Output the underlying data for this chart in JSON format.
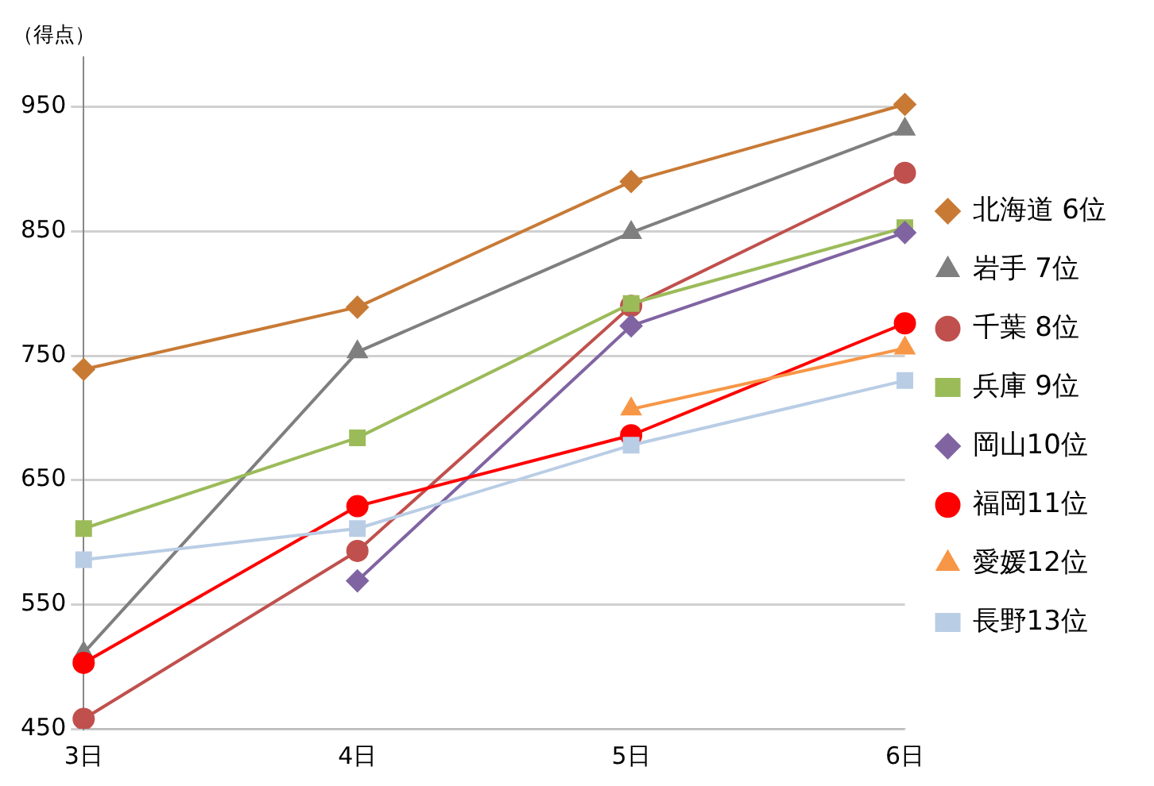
{
  "chart_data": {
    "type": "line",
    "ylabel": "（得点）",
    "categories": [
      "3日",
      "4日",
      "5日",
      "6日"
    ],
    "ylim": [
      450,
      990
    ],
    "yticks": [
      450,
      550,
      650,
      750,
      850,
      950
    ],
    "grid": "y",
    "legend": "right",
    "series": [
      {
        "name": "北海道 6位",
        "color": "#c87a35",
        "marker": "diamond",
        "values": [
          739,
          789,
          890,
          952
        ]
      },
      {
        "name": "岩手 7位",
        "color": "#7f7f7f",
        "marker": "triangle",
        "values": [
          511,
          753,
          849,
          932
        ]
      },
      {
        "name": "千葉 8位",
        "color": "#c0504d",
        "marker": "circle",
        "values": [
          458,
          593,
          790,
          897
        ]
      },
      {
        "name": "兵庫 9位",
        "color": "#9bbb59",
        "marker": "square",
        "values": [
          611,
          684,
          792,
          853
        ]
      },
      {
        "name": "岡山10位",
        "color": "#8064a2",
        "marker": "diamond",
        "values": [
          null,
          569,
          774,
          849
        ]
      },
      {
        "name": "福岡11位",
        "color": "#ff0000",
        "marker": "circle",
        "values": [
          503,
          629,
          686,
          776
        ]
      },
      {
        "name": "愛媛12位",
        "color": "#f79646",
        "marker": "triangle",
        "values": [
          null,
          null,
          707,
          756
        ]
      },
      {
        "name": "長野13位",
        "color": "#b9cde5",
        "marker": "square",
        "values": [
          586,
          611,
          678,
          730
        ]
      }
    ]
  }
}
